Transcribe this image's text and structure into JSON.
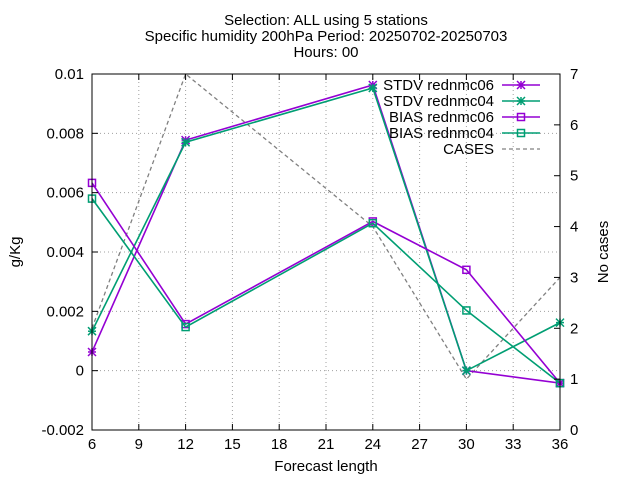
{
  "chart_data": {
    "type": "line",
    "title": [
      "Selection: ALL using     5 stations",
      "Specific humidity 200hPa   Period: 20250702-20250703",
      "Hours: 00"
    ],
    "xlabel": "Forecast length",
    "ylabel": "g/Kg",
    "y2label": "No cases",
    "xlim": [
      6,
      36
    ],
    "ylim": [
      -0.002,
      0.01
    ],
    "y2lim": [
      0,
      7
    ],
    "x_ticks": [
      "6",
      "9",
      "12",
      "15",
      "18",
      "21",
      "24",
      "27",
      "30",
      "33",
      "36"
    ],
    "y_ticks": [
      "-0.002",
      "0",
      "0.002",
      "0.004",
      "0.006",
      "0.008",
      "0.01"
    ],
    "y2_ticks": [
      "0",
      "1",
      "2",
      "3",
      "4",
      "5",
      "6",
      "7"
    ],
    "grid": true,
    "legend_position": "top-right",
    "x": [
      6,
      12,
      24,
      30,
      36
    ],
    "series": [
      {
        "name": "STDV rednmc06",
        "axis": "y",
        "color": "#9400d3",
        "marker": "x-star",
        "values": [
          0.00063,
          0.00777,
          0.00963,
          0.0,
          -0.00042
        ]
      },
      {
        "name": "STDV rednmc04",
        "axis": "y",
        "color": "#009e73",
        "marker": "x-star",
        "values": [
          0.00133,
          0.0077,
          0.00953,
          0.0,
          0.00162
        ]
      },
      {
        "name": "BIAS rednmc06",
        "axis": "y",
        "color": "#9400d3",
        "marker": "square",
        "values": [
          0.00633,
          0.00157,
          0.00503,
          0.0034,
          -0.00042
        ]
      },
      {
        "name": "BIAS rednmc04",
        "axis": "y",
        "color": "#009e73",
        "marker": "square",
        "values": [
          0.0058,
          0.00147,
          0.00497,
          0.00203,
          -0.00042
        ]
      },
      {
        "name": "CASES",
        "axis": "y2",
        "color": "#808080",
        "marker": "none",
        "dashed": true,
        "values": [
          2,
          7,
          4,
          1,
          3
        ]
      }
    ]
  }
}
